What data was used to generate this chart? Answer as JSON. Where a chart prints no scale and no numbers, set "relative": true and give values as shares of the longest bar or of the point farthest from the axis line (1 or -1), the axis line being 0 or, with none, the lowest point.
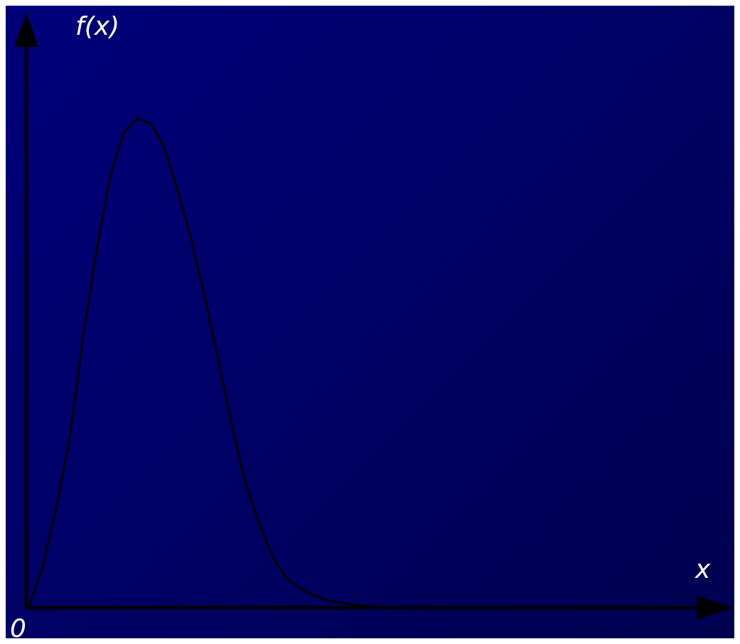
{
  "chart_data": {
    "type": "line",
    "relative": true,
    "ylabel": "f(x)",
    "xlabel": "x",
    "annotations": [
      "0"
    ],
    "color": "#000000",
    "categories": [
      null,
      null,
      null,
      null,
      null,
      null,
      null,
      null,
      null,
      null,
      null,
      null,
      null,
      null,
      null,
      null,
      null,
      null,
      null,
      null,
      null,
      null,
      null,
      null,
      null,
      null,
      null,
      null,
      null,
      null,
      null,
      null,
      null,
      null,
      null,
      null,
      null,
      null,
      null,
      null,
      null,
      null,
      null,
      null,
      null,
      null,
      null,
      null,
      null
    ],
    "values": [
      0,
      0.08,
      0.2,
      0.34,
      0.55,
      0.73,
      0.88,
      0.97,
      1,
      0.99,
      0.94,
      0.85,
      0.75,
      0.63,
      0.5,
      0.37,
      0.25,
      0.17,
      0.1,
      0.06,
      0.04,
      0.025,
      0.015,
      0.01,
      0.006,
      0.003,
      0.001,
      0,
      0,
      0,
      0,
      0,
      0,
      0,
      0,
      0,
      0,
      0,
      0,
      0,
      0,
      0,
      0,
      0,
      0,
      0,
      0,
      0,
      0
    ]
  }
}
